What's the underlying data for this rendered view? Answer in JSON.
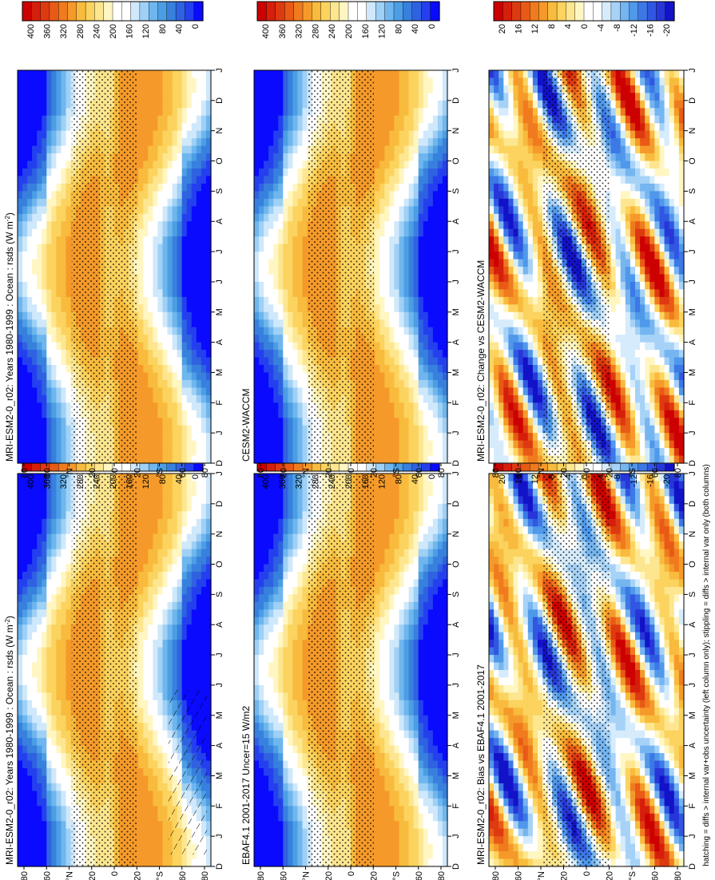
{
  "footnote": "hatching = diffs > internal var+obs uncertainty (left column only); stippling = diffs > internal var only (both columns)",
  "colors": {
    "abs_scale": [
      "#0a0aff",
      "#2440ee",
      "#2f62e0",
      "#3880dd",
      "#4c9ee4",
      "#6fb6ee",
      "#9fd0f5",
      "#cfe8fb",
      "#ffffff",
      "#ffffff",
      "#fff6c2",
      "#fde68f",
      "#fbd35e",
      "#f8bb3d",
      "#f59a2a",
      "#f07b1e",
      "#e85a16",
      "#de3a10",
      "#d61f0b",
      "#cc0000"
    ],
    "diff_scale": [
      "#1212c8",
      "#2736d8",
      "#3157e2",
      "#3c78e6",
      "#4f98ea",
      "#75b5f0",
      "#a6d2f7",
      "#d6ecfc",
      "#ffffff",
      "#ffffff",
      "#fff6c2",
      "#fde68f",
      "#fbd35e",
      "#f8bb3d",
      "#f59a2a",
      "#f07b1e",
      "#e85a16",
      "#de3a10",
      "#d61f0b",
      "#cc0000"
    ]
  },
  "chart_data": [
    {
      "type": "heatmap",
      "panel": "left-top",
      "title": "MRI-ESM2-0_r02: Years 1980-1999 : Ocean : rsds (W m",
      "title_sup": "-2",
      "title_tail": ")",
      "x_ticks": [
        "D",
        "J",
        "F",
        "M",
        "A",
        "M",
        "J",
        "J",
        "A",
        "S",
        "O",
        "N",
        "D",
        "J"
      ],
      "y_ticks": [
        "80",
        "60",
        "°N",
        "20",
        "0",
        "20",
        "°S",
        "60",
        "80"
      ],
      "colorbar_ticks": [
        "400",
        "360",
        "320",
        "280",
        "240",
        "200",
        "160",
        "120",
        "80",
        "40",
        "0"
      ],
      "zlim": [
        0,
        400
      ],
      "hatching": true,
      "stippling": true
    },
    {
      "type": "heatmap",
      "panel": "left-middle",
      "title": "EBAF4.1 2001-2017 Uncer=15 W/m2",
      "x_ticks": [
        "D",
        "J",
        "F",
        "M",
        "A",
        "M",
        "J",
        "J",
        "A",
        "S",
        "O",
        "N",
        "D",
        "J"
      ],
      "y_ticks": [
        "80",
        "60",
        "°N",
        "20",
        "0",
        "20",
        "°S",
        "60",
        "80"
      ],
      "colorbar_ticks": [
        "400",
        "360",
        "320",
        "280",
        "240",
        "200",
        "160",
        "120",
        "80",
        "40",
        "0"
      ],
      "zlim": [
        0,
        400
      ]
    },
    {
      "type": "heatmap",
      "panel": "left-bottom",
      "title": "MRI-ESM2-0_r02: Bias vs EBAF4.1 2001-2017",
      "x_ticks": [
        "D",
        "J",
        "F",
        "M",
        "A",
        "M",
        "J",
        "J",
        "A",
        "S",
        "O",
        "N",
        "D",
        "J"
      ],
      "y_ticks": [
        "80",
        "60",
        "°N",
        "20",
        "0",
        "20",
        "°S",
        "60",
        "80"
      ],
      "colorbar_ticks": [
        "20",
        "16",
        "12",
        "8",
        "4",
        "0",
        "-4",
        "-8",
        "-12",
        "-16",
        "-20"
      ],
      "zlim": [
        -20,
        20
      ]
    },
    {
      "type": "heatmap",
      "panel": "right-top",
      "title": "MRI-ESM2-0_r02: Years 1980-1999 : Ocean : rsds (W m",
      "title_sup": "-2",
      "title_tail": ")",
      "x_ticks": [
        "D",
        "J",
        "F",
        "M",
        "A",
        "M",
        "J",
        "J",
        "A",
        "S",
        "O",
        "N",
        "D",
        "J"
      ],
      "y_ticks": [
        "80",
        "60",
        "°N",
        "20",
        "0",
        "20",
        "°S",
        "60",
        "80"
      ],
      "colorbar_ticks": [
        "400",
        "360",
        "320",
        "280",
        "240",
        "200",
        "160",
        "120",
        "80",
        "40",
        "0"
      ],
      "zlim": [
        0,
        400
      ]
    },
    {
      "type": "heatmap",
      "panel": "right-middle",
      "title": "CESM2-WACCM",
      "x_ticks": [
        "D",
        "J",
        "F",
        "M",
        "A",
        "M",
        "J",
        "J",
        "A",
        "S",
        "O",
        "N",
        "D",
        "J"
      ],
      "y_ticks": [
        "80",
        "60",
        "°N",
        "20",
        "0",
        "20",
        "°S",
        "60",
        "80"
      ],
      "colorbar_ticks": [
        "400",
        "360",
        "320",
        "280",
        "240",
        "200",
        "160",
        "120",
        "80",
        "40",
        "0"
      ],
      "zlim": [
        0,
        400
      ]
    },
    {
      "type": "heatmap",
      "panel": "right-bottom",
      "title": "MRI-ESM2-0_r02: Change vs CESM2-WACCM",
      "x_ticks": [
        "D",
        "J",
        "F",
        "M",
        "A",
        "M",
        "J",
        "J",
        "A",
        "S",
        "O",
        "N",
        "D",
        "J"
      ],
      "y_ticks": [
        "80",
        "60",
        "°N",
        "20",
        "0",
        "20",
        "°S",
        "60",
        "80"
      ],
      "colorbar_ticks": [
        "20",
        "16",
        "12",
        "8",
        "4",
        "0",
        "-4",
        "-8",
        "-12",
        "-16",
        "-20"
      ],
      "zlim": [
        -20,
        20
      ]
    }
  ]
}
